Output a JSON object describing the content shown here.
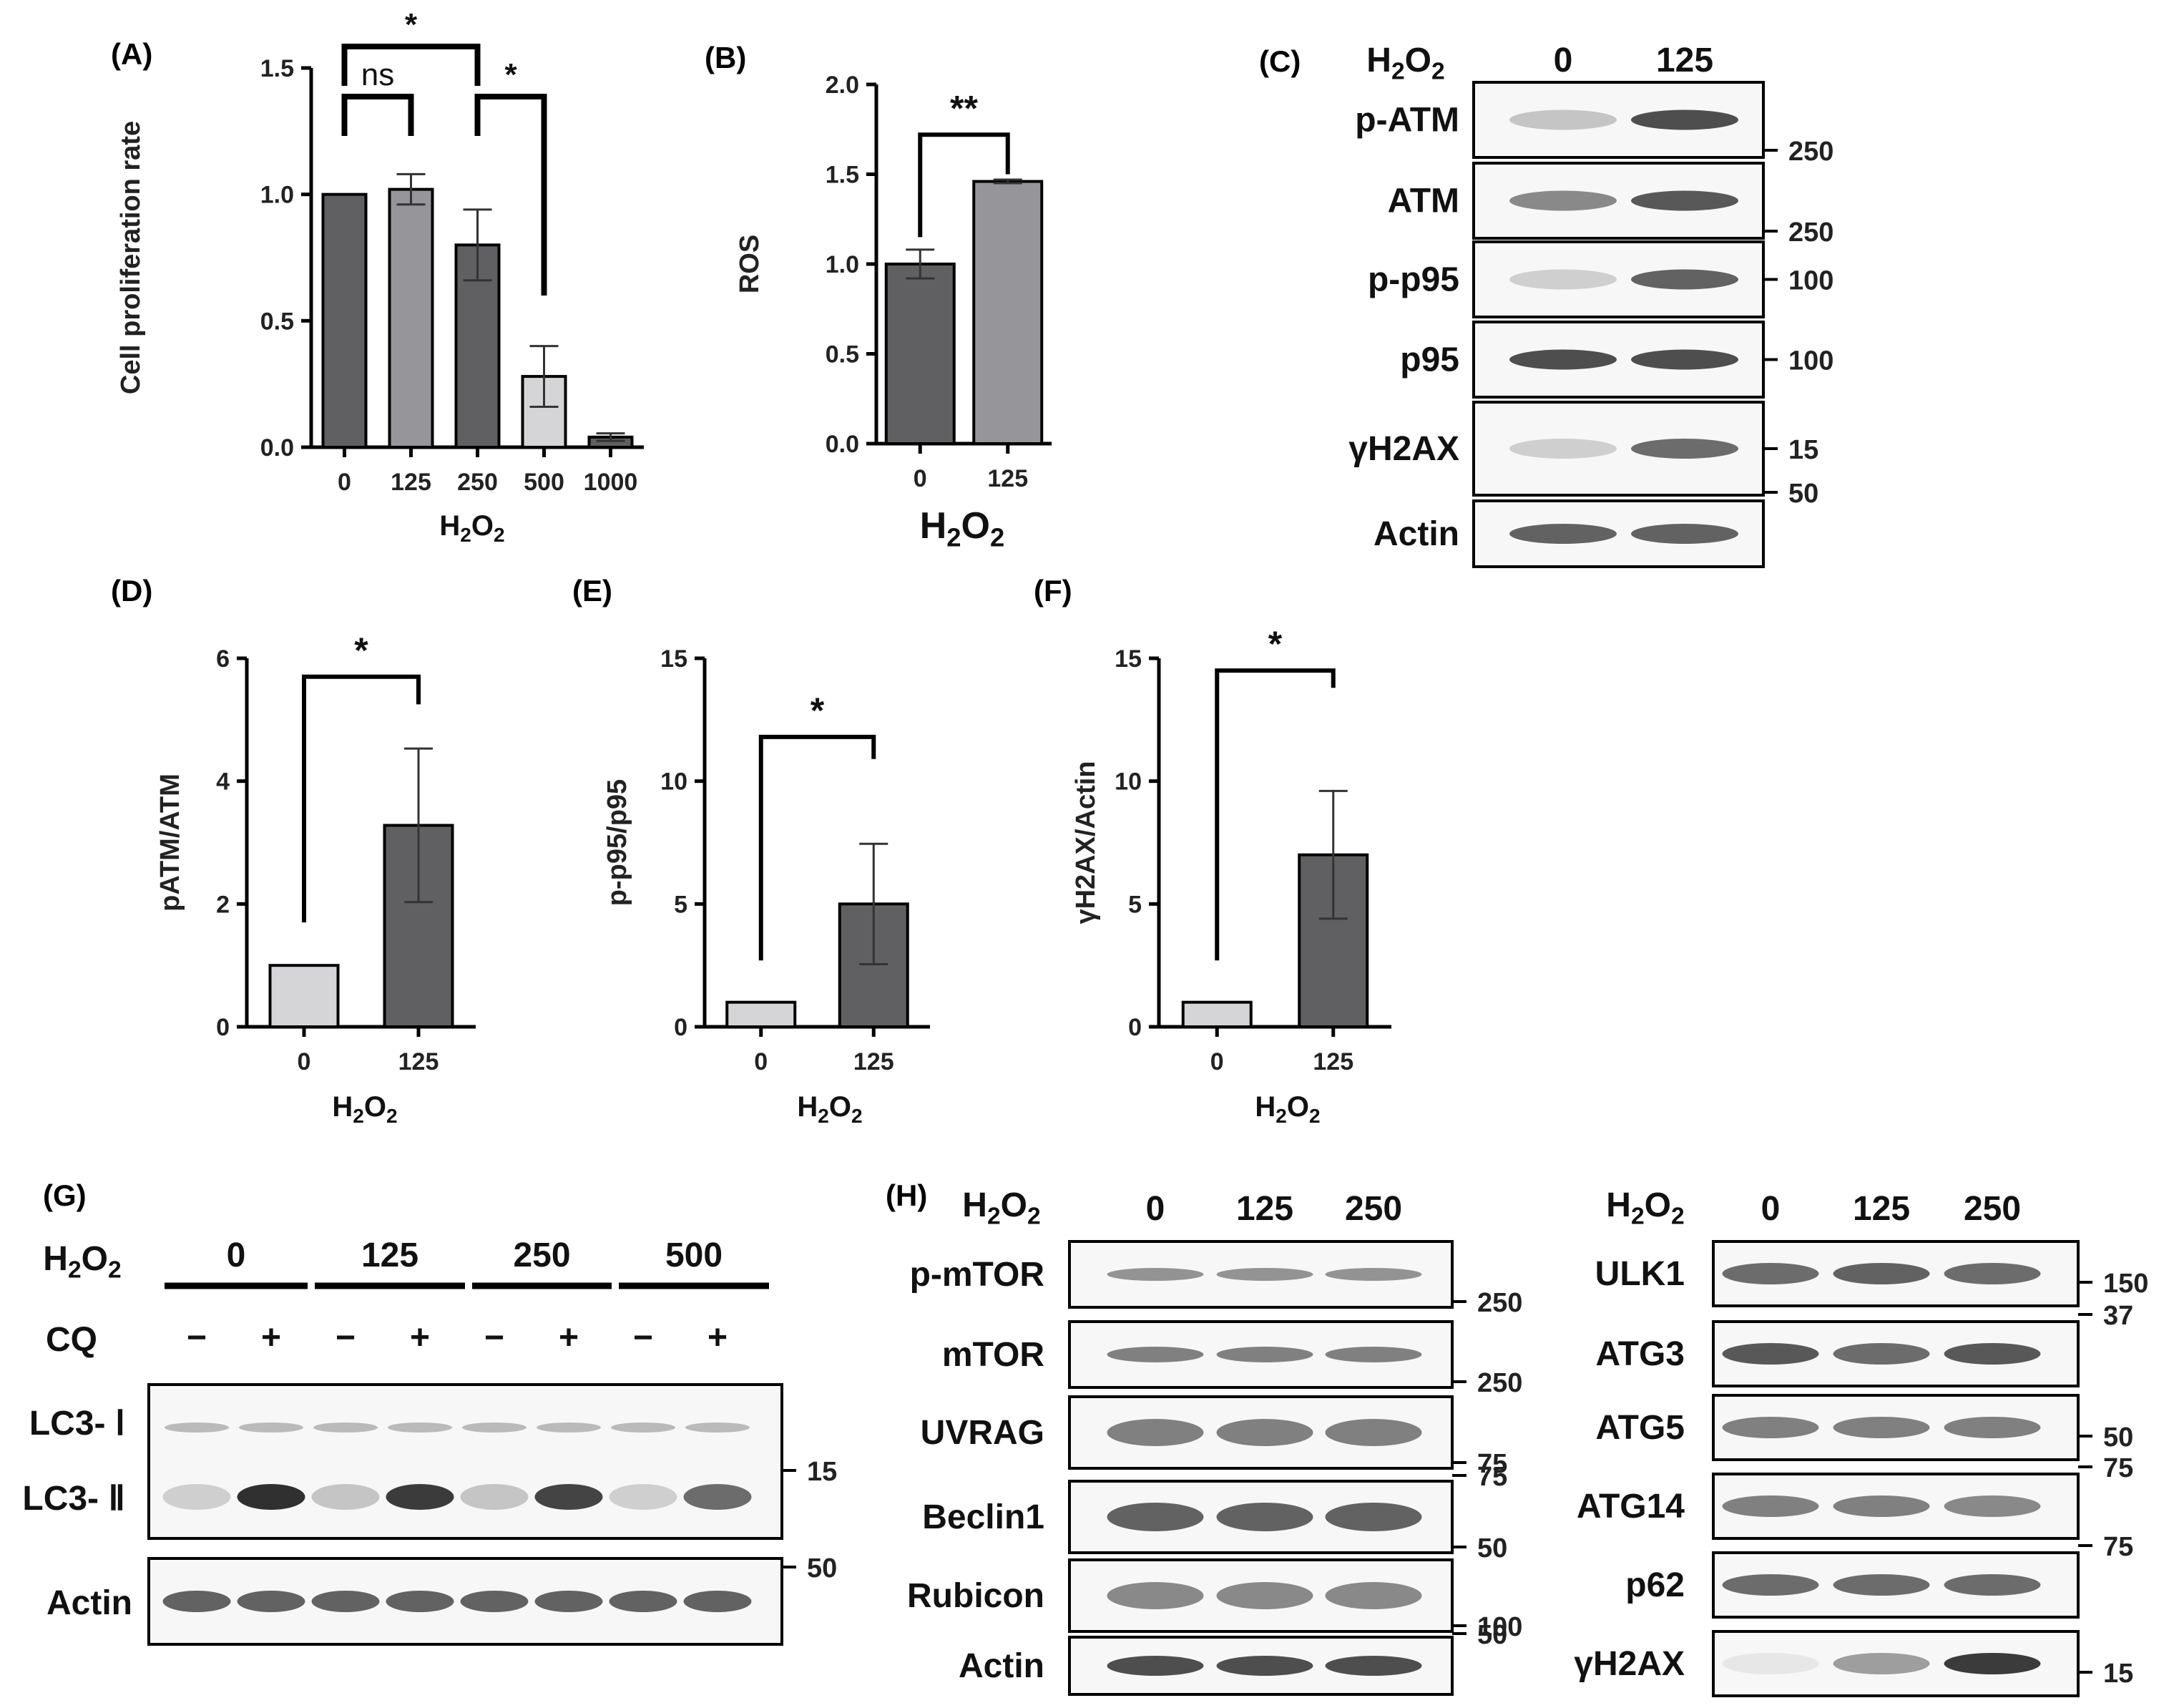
{
  "colors": {
    "dark": "#606063",
    "mid": "#96969a",
    "light": "#d5d5d7",
    "axis": "#000000",
    "band": "#303030"
  },
  "chart_data": [
    {
      "id": "A",
      "panel": "(A)",
      "type": "bar",
      "categories": [
        "0",
        "125",
        "250",
        "500",
        "1000"
      ],
      "values": [
        1.0,
        1.02,
        0.8,
        0.28,
        0.04
      ],
      "errors": [
        0,
        0.06,
        0.14,
        0.12,
        0.015
      ],
      "bar_colors": [
        "dark",
        "mid",
        "dark",
        "light",
        "dark"
      ],
      "ylabel": "Cell proliferation rate",
      "xlabel": "H2O2",
      "ylim": [
        0,
        1.5
      ],
      "yticks": [
        "0.0",
        "0.5",
        "1.0",
        "1.5"
      ],
      "comparisons": [
        {
          "from": 0,
          "to": 1,
          "label": "ns"
        },
        {
          "from": 0,
          "to": 2,
          "label": "*"
        },
        {
          "from": 2,
          "to": 3,
          "label": "*"
        }
      ]
    },
    {
      "id": "B",
      "panel": "(B)",
      "type": "bar",
      "categories": [
        "0",
        "125"
      ],
      "values": [
        1.0,
        1.46
      ],
      "errors": [
        0.08,
        0.01
      ],
      "bar_colors": [
        "dark",
        "mid"
      ],
      "ylabel": "ROS",
      "xlabel": "H2O2",
      "ylim": [
        0,
        2.0
      ],
      "yticks": [
        "0.0",
        "0.5",
        "1.0",
        "1.5",
        "2.0"
      ],
      "comparisons": [
        {
          "from": 0,
          "to": 1,
          "label": "**"
        }
      ]
    },
    {
      "id": "D",
      "panel": "(D)",
      "type": "bar",
      "categories": [
        "0",
        "125"
      ],
      "values": [
        1.0,
        3.28
      ],
      "errors": [
        0,
        1.25
      ],
      "bar_colors": [
        "light",
        "dark"
      ],
      "ylabel": "pATM/ATM",
      "xlabel": "H2O2",
      "ylim": [
        0,
        6
      ],
      "yticks": [
        "0",
        "2",
        "4",
        "6"
      ],
      "comparisons": [
        {
          "from": 0,
          "to": 1,
          "label": "*"
        }
      ]
    },
    {
      "id": "E",
      "panel": "(E)",
      "type": "bar",
      "categories": [
        "0",
        "125"
      ],
      "values": [
        1.0,
        5.0
      ],
      "errors": [
        0,
        2.45
      ],
      "bar_colors": [
        "light",
        "dark"
      ],
      "ylabel": "p-p95/p95",
      "xlabel": "H2O2",
      "ylim": [
        0,
        15
      ],
      "yticks": [
        "0",
        "5",
        "10",
        "15"
      ],
      "comparisons": [
        {
          "from": 0,
          "to": 1,
          "label": "*"
        }
      ]
    },
    {
      "id": "F",
      "panel": "(F)",
      "type": "bar",
      "categories": [
        "0",
        "125"
      ],
      "values": [
        1.0,
        7.0
      ],
      "errors": [
        0,
        2.6
      ],
      "bar_colors": [
        "light",
        "dark"
      ],
      "ylabel": "γH2AX/Actin",
      "xlabel": "H2O2",
      "ylim": [
        0,
        15
      ],
      "yticks": [
        "0",
        "5",
        "10",
        "15"
      ],
      "comparisons": [
        {
          "from": 0,
          "to": 1,
          "label": "*"
        }
      ]
    }
  ],
  "blots": {
    "C": {
      "panel": "(C)",
      "header_label": "H2O2",
      "lanes": [
        "0",
        "125"
      ],
      "rows": [
        {
          "label": "p-ATM",
          "mw": "250",
          "intensity": [
            0.25,
            0.85
          ]
        },
        {
          "label": "ATM",
          "mw": "250",
          "intensity": [
            0.55,
            0.8
          ]
        },
        {
          "label": "p-p95",
          "mw": "100",
          "intensity": [
            0.2,
            0.75
          ]
        },
        {
          "label": "p95",
          "mw": "100",
          "intensity": [
            0.85,
            0.85
          ]
        },
        {
          "label": "γH2AX",
          "mw": "15",
          "intensity": [
            0.2,
            0.7
          ]
        },
        {
          "label": "Actin",
          "mw": "50",
          "intensity": [
            0.75,
            0.75
          ]
        }
      ]
    },
    "G": {
      "panel": "(G)",
      "header_label": "H2O2",
      "groups": [
        "0",
        "125",
        "250",
        "500"
      ],
      "cq_label": "CQ",
      "cq_signs": [
        "−",
        "+",
        "−",
        "+",
        "−",
        "+",
        "−",
        "+"
      ],
      "rows": [
        {
          "label": "LC3- Ⅰ",
          "mw": "15"
        },
        {
          "label": "LC3- Ⅱ",
          "mw": ""
        },
        {
          "label": "Actin",
          "mw": "50"
        }
      ],
      "lc3i": [
        0.3,
        0.3,
        0.3,
        0.3,
        0.3,
        0.3,
        0.3,
        0.3
      ],
      "lc3ii": [
        0.2,
        1.0,
        0.25,
        0.95,
        0.25,
        0.9,
        0.2,
        0.7
      ],
      "actin": [
        0.75,
        0.75,
        0.75,
        0.75,
        0.75,
        0.75,
        0.75,
        0.75
      ]
    },
    "H_left": {
      "panel": "(H)",
      "header_label": "H2O2",
      "lanes": [
        "0",
        "125",
        "250"
      ],
      "rows": [
        {
          "label": "p-mTOR",
          "mw": "250"
        },
        {
          "label": "mTOR",
          "mw": "250"
        },
        {
          "label": "UVRAG",
          "mw": "75"
        },
        {
          "label": "Beclin1",
          "mw_top": "75",
          "mw": "50"
        },
        {
          "label": "Rubicon",
          "mw": "100"
        },
        {
          "label": "Actin",
          "mw": "50"
        }
      ]
    },
    "H_right": {
      "header_label": "H2O2",
      "lanes": [
        "0",
        "125",
        "250"
      ],
      "rows": [
        {
          "label": "ULK1",
          "mw": "150"
        },
        {
          "label": "ATG3",
          "mw": "37"
        },
        {
          "label": "ATG5",
          "mw": "50"
        },
        {
          "label": "ATG14",
          "mw": "75"
        },
        {
          "label": "p62",
          "mw": "75"
        },
        {
          "label": "γH2AX",
          "mw": "15"
        }
      ]
    }
  }
}
